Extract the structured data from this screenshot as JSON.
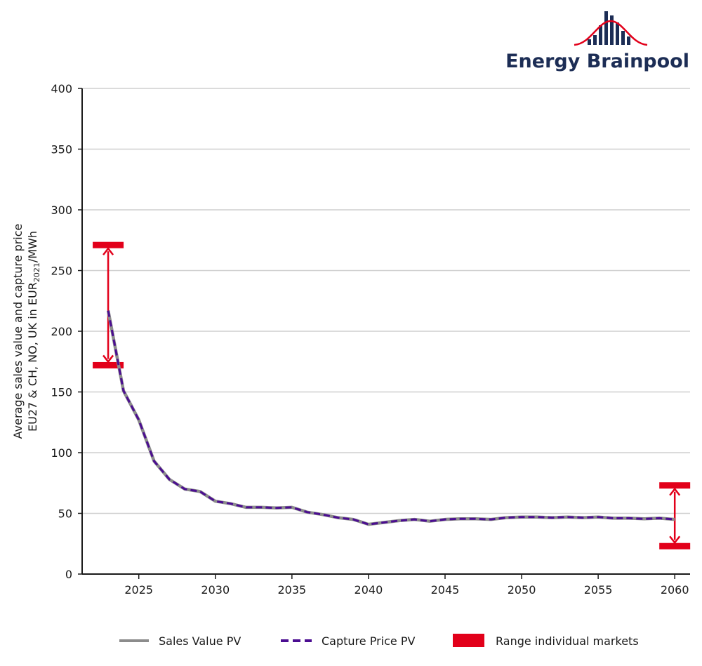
{
  "brand": {
    "name": "Energy Brainpool"
  },
  "chart_data": {
    "type": "line",
    "ylabel_line1": "Average sales value and capture price",
    "ylabel_line2_prefix": "EU27 & CH, NO, UK in EUR",
    "ylabel_line2_subscript": "2021",
    "ylabel_line2_suffix": "/MWh",
    "ylim": [
      0,
      400
    ],
    "yticks": [
      0,
      50,
      100,
      150,
      200,
      250,
      300,
      350,
      400
    ],
    "xlim": [
      2021.3,
      2061
    ],
    "xticks": [
      2025,
      2030,
      2035,
      2040,
      2045,
      2050,
      2055,
      2060
    ],
    "grid": "horizontal",
    "legend_position": "bottom",
    "x": [
      2023,
      2024,
      2025,
      2026,
      2027,
      2028,
      2029,
      2030,
      2031,
      2032,
      2033,
      2034,
      2035,
      2036,
      2037,
      2038,
      2039,
      2040,
      2041,
      2042,
      2043,
      2044,
      2045,
      2046,
      2047,
      2048,
      2049,
      2050,
      2051,
      2052,
      2053,
      2054,
      2055,
      2056,
      2057,
      2058,
      2059,
      2060
    ],
    "series": [
      {
        "name": "Sales Value PV",
        "style": "solid",
        "color": "#8c8c8c",
        "values": [
          217,
          151,
          127,
          93,
          78,
          70,
          68,
          60,
          58,
          55,
          55,
          54.5,
          55,
          51,
          49,
          46.5,
          45,
          41,
          42.5,
          44,
          45,
          43.5,
          45,
          45.5,
          45.5,
          45,
          46.5,
          47,
          47,
          46.5,
          47,
          46.5,
          47,
          46,
          46,
          45.5,
          46,
          45
        ]
      },
      {
        "name": "Capture Price PV",
        "style": "dashed",
        "color": "#4b0d91",
        "values": [
          217,
          151,
          127,
          93,
          78,
          70,
          68,
          60,
          58,
          55,
          55,
          54.5,
          55,
          51,
          49,
          46.5,
          45,
          41,
          42.5,
          44,
          45,
          43.5,
          45,
          45.5,
          45.5,
          45,
          46.5,
          47,
          47,
          46.5,
          47,
          46.5,
          47,
          46,
          46,
          45.5,
          46,
          45
        ]
      }
    ],
    "ranges": {
      "name": "Range individual markets",
      "color": "#e2001a",
      "items": [
        {
          "x": 2023,
          "low": 172,
          "high": 271
        },
        {
          "x": 2060,
          "low": 23,
          "high": 73
        }
      ]
    }
  }
}
